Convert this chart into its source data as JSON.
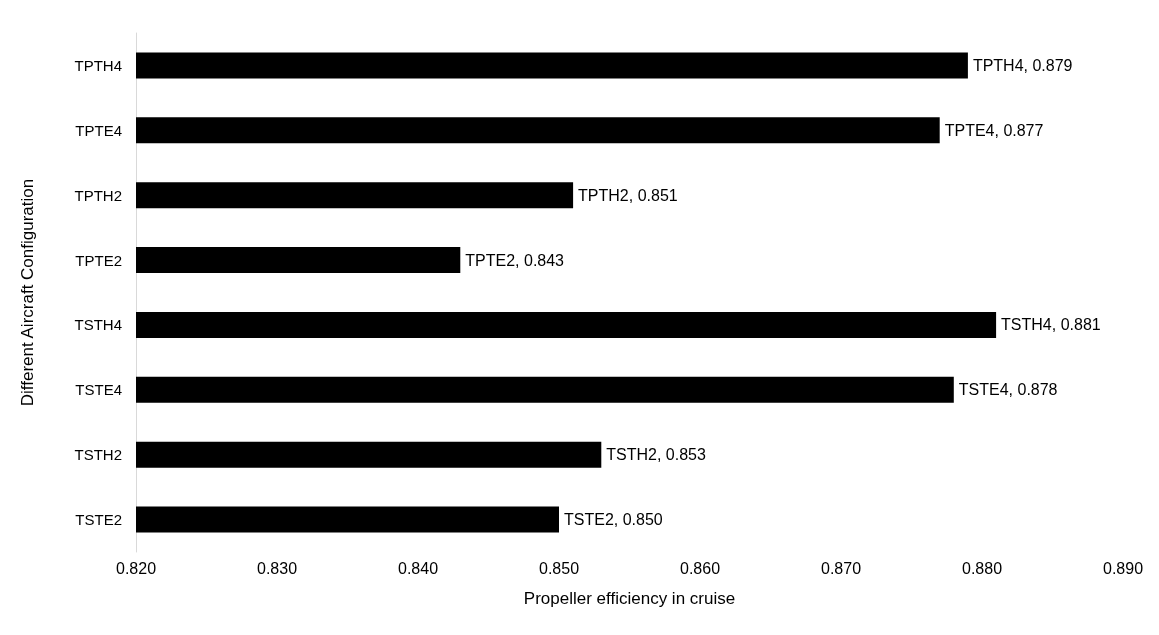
{
  "chart_data": {
    "type": "bar",
    "orientation": "horizontal",
    "xlabel": "Propeller efficiency in cruise",
    "ylabel": "Different Aircraft Configuration",
    "categories": [
      "TPTH4",
      "TPTE4",
      "TPTH2",
      "TPTE2",
      "TSTH4",
      "TSTE4",
      "TSTH2",
      "TSTE2"
    ],
    "values": [
      0.879,
      0.877,
      0.851,
      0.843,
      0.881,
      0.878,
      0.853,
      0.85
    ],
    "value_labels": [
      "TPTH4, 0.879",
      "TPTE4, 0.877",
      "TPTH2, 0.851",
      "TPTE2, 0.843",
      "TSTH4, 0.881",
      "TSTE4, 0.878",
      "TSTH2, 0.853",
      "TSTE2, 0.850"
    ],
    "color": "#000000",
    "xlim": [
      0.82,
      0.89
    ],
    "xticks": [
      {
        "value": 0.82,
        "label": "0.820"
      },
      {
        "value": 0.83,
        "label": "0.830"
      },
      {
        "value": 0.84,
        "label": "0.840"
      },
      {
        "value": 0.85,
        "label": "0.850"
      },
      {
        "value": 0.86,
        "label": "0.860"
      },
      {
        "value": 0.87,
        "label": "0.870"
      },
      {
        "value": 0.88,
        "label": "0.880"
      },
      {
        "value": 0.89,
        "label": "0.890"
      }
    ],
    "grid": false
  }
}
